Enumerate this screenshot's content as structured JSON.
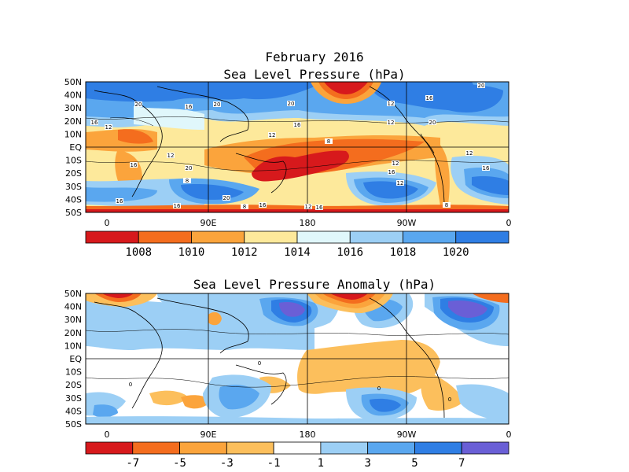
{
  "titles": {
    "main": "February 2016",
    "top": "Sea Level Pressure (hPa)",
    "bottom": "Sea Level Pressure Anomaly (hPa)"
  },
  "lat_labels": [
    "50N",
    "40N",
    "30N",
    "20N",
    "10N",
    "EQ",
    "10S",
    "20S",
    "30S",
    "40S",
    "50S"
  ],
  "lon_labels": [
    "0",
    "90E",
    "180",
    "90W",
    "0"
  ],
  "colorbar_top": {
    "colors": [
      "#d7191c",
      "#f46d1e",
      "#fba43c",
      "#fde99b",
      "#e0f7fb",
      "#9ccff5",
      "#5aa7ef",
      "#2f7ee4"
    ],
    "labels": [
      "1008",
      "1010",
      "1012",
      "1014",
      "1016",
      "1018",
      "1020"
    ]
  },
  "colorbar_bottom": {
    "colors": [
      "#d7191c",
      "#f46d1e",
      "#fba43c",
      "#fcbf5c",
      "#ffffff",
      "#9ccff5",
      "#5aa7ef",
      "#2f7ee4",
      "#6a5fd6"
    ],
    "labels": [
      "-7",
      "-5",
      "-3",
      "-1",
      "1",
      "3",
      "5",
      "7"
    ]
  },
  "contour_labels_top": [
    "20",
    "20",
    "16",
    "20",
    "16",
    "12",
    "20",
    "16",
    "16",
    "20",
    "12",
    "12",
    "8",
    "12",
    "12",
    "16",
    "20",
    "12",
    "12",
    "8",
    "12",
    "16",
    "20",
    "16",
    "16",
    "16",
    "16",
    "8",
    "12",
    "16",
    "8"
  ],
  "contour_labels_bottom": [
    "0",
    "0",
    "0",
    "0"
  ]
}
